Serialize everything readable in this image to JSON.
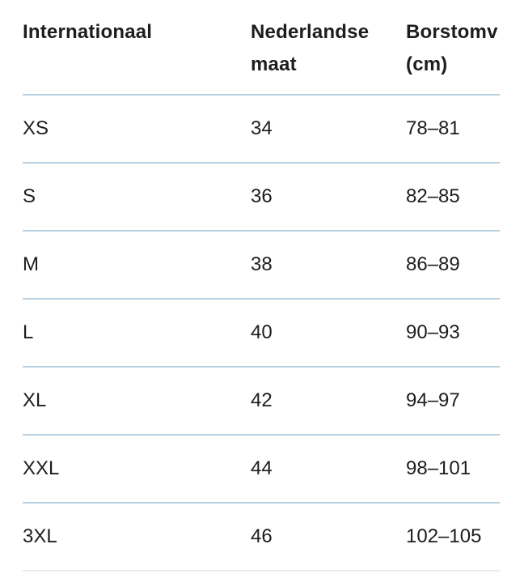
{
  "colors": {
    "background": "#ffffff",
    "text": "#1d1d1d",
    "divider": "#b7d0e0",
    "bottom_line": "#ebebeb"
  },
  "table": {
    "headers": [
      "Internationaal",
      "Nederlandse maat",
      "Borstomv (cm)"
    ],
    "rows": [
      [
        "XS",
        "34",
        "78–81"
      ],
      [
        "S",
        "36",
        "82–85"
      ],
      [
        "M",
        "38",
        "86–89"
      ],
      [
        "L",
        "40",
        "90–93"
      ],
      [
        "XL",
        "42",
        "94–97"
      ],
      [
        "XXL",
        "44",
        "98–101"
      ],
      [
        "3XL",
        "46",
        "102–105"
      ]
    ]
  }
}
